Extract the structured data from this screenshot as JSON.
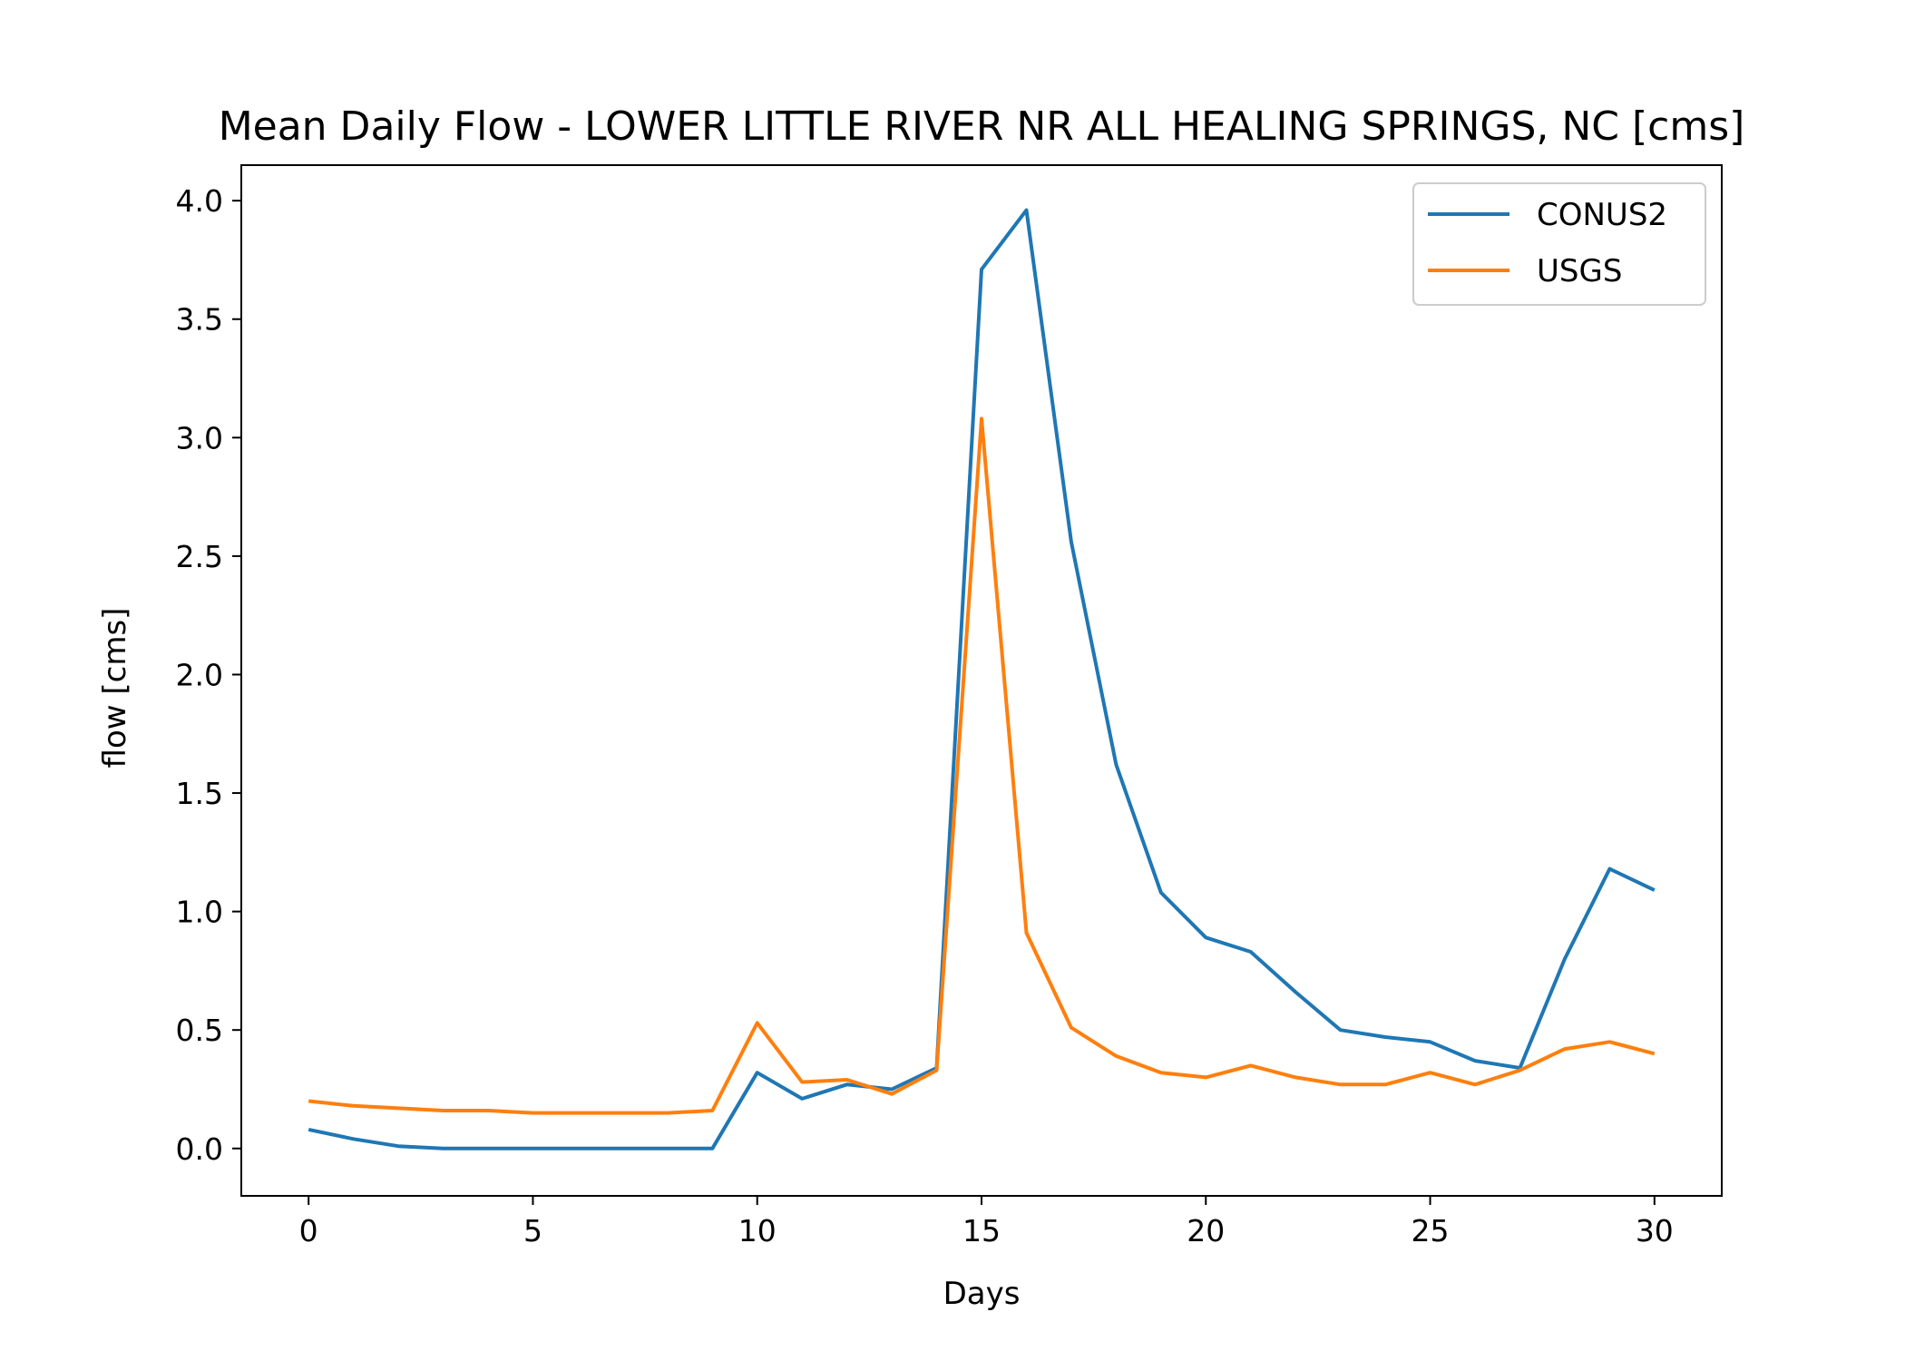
{
  "chart_data": {
    "type": "line",
    "title": "Mean Daily Flow - LOWER LITTLE RIVER NR ALL HEALING SPRINGS, NC [cms]",
    "xlabel": "Days",
    "ylabel": "flow [cms]",
    "xlim": [
      -1.5,
      31.5
    ],
    "ylim": [
      -0.2,
      4.15
    ],
    "xticks": [
      0,
      5,
      10,
      15,
      20,
      25,
      30
    ],
    "xtick_labels": [
      "0",
      "5",
      "10",
      "15",
      "20",
      "25",
      "30"
    ],
    "yticks": [
      0.0,
      0.5,
      1.0,
      1.5,
      2.0,
      2.5,
      3.0,
      3.5,
      4.0
    ],
    "ytick_labels": [
      "0.0",
      "0.5",
      "1.0",
      "1.5",
      "2.0",
      "2.5",
      "3.0",
      "3.5",
      "4.0"
    ],
    "grid": false,
    "legend_position": "top-right",
    "x": [
      0,
      1,
      2,
      3,
      4,
      5,
      6,
      7,
      8,
      9,
      10,
      11,
      12,
      13,
      14,
      15,
      16,
      17,
      18,
      19,
      20,
      21,
      22,
      23,
      24,
      25,
      26,
      27,
      28,
      29,
      30
    ],
    "series": [
      {
        "name": "CONUS2",
        "color": "#1f77b4",
        "values": [
          0.08,
          0.04,
          0.01,
          0.0,
          0.0,
          0.0,
          0.0,
          0.0,
          0.0,
          0.0,
          0.32,
          0.21,
          0.27,
          0.25,
          0.34,
          3.71,
          3.96,
          2.56,
          1.62,
          1.08,
          0.89,
          0.83,
          0.66,
          0.5,
          0.47,
          0.45,
          0.37,
          0.34,
          0.8,
          1.18,
          1.09
        ]
      },
      {
        "name": "USGS",
        "color": "#ff7f0e",
        "values": [
          0.2,
          0.18,
          0.17,
          0.16,
          0.16,
          0.15,
          0.15,
          0.15,
          0.15,
          0.16,
          0.53,
          0.28,
          0.29,
          0.23,
          0.33,
          3.08,
          0.91,
          0.51,
          0.39,
          0.32,
          0.3,
          0.35,
          0.3,
          0.27,
          0.27,
          0.32,
          0.27,
          0.33,
          0.42,
          0.45,
          0.4
        ]
      }
    ]
  }
}
